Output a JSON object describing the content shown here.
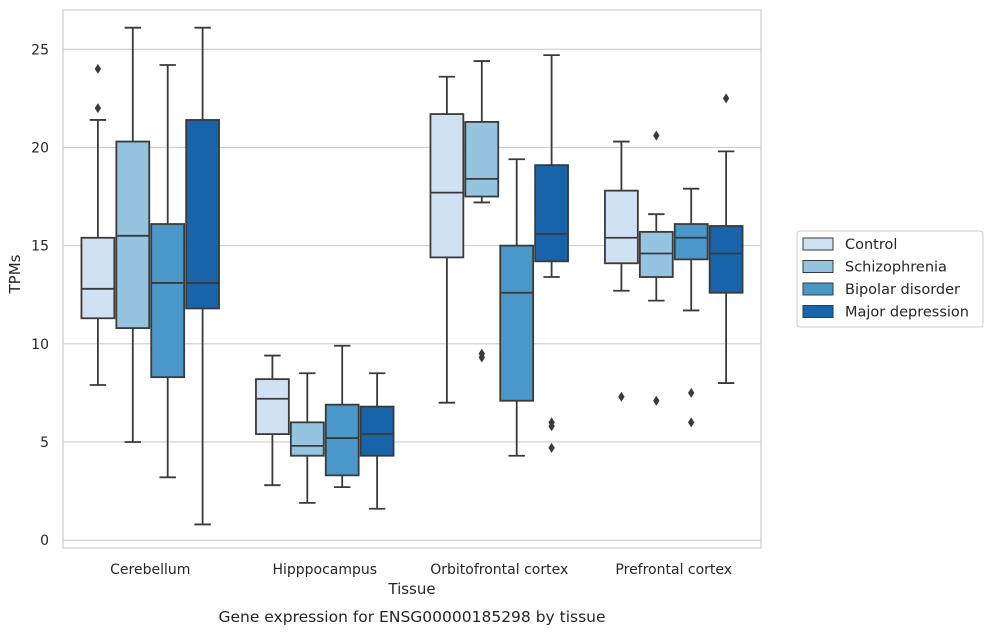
{
  "chart_data": {
    "type": "boxplot",
    "caption": "Gene expression for ENSG00000185298 by tissue",
    "xlabel": "Tissue",
    "ylabel": "TPMs",
    "ylim": [
      -0.4,
      27.0
    ],
    "yticks": [
      0,
      5,
      10,
      15,
      20,
      25
    ],
    "grid": "horizontal",
    "legend_position": "right",
    "categories": [
      "Cerebellum",
      "Hipppocampus",
      "Orbitofrontal cortex",
      "Prefrontal cortex"
    ],
    "series": [
      {
        "name": "Control",
        "color": "#d0e1f2",
        "boxes": [
          {
            "whislo": 7.9,
            "q1": 11.3,
            "med": 12.8,
            "q3": 15.4,
            "whishi": 21.4,
            "fliers": [
              22.0,
              24.0
            ]
          },
          {
            "whislo": 2.8,
            "q1": 5.4,
            "med": 7.2,
            "q3": 8.2,
            "whishi": 9.4,
            "fliers": []
          },
          {
            "whislo": 7.0,
            "q1": 14.4,
            "med": 17.7,
            "q3": 21.7,
            "whishi": 23.6,
            "fliers": []
          },
          {
            "whislo": 12.7,
            "q1": 14.1,
            "med": 15.4,
            "q3": 17.8,
            "whishi": 20.3,
            "fliers": [
              7.3
            ]
          }
        ]
      },
      {
        "name": "Schizophrenia",
        "color": "#94c4df",
        "boxes": [
          {
            "whislo": 5.0,
            "q1": 10.8,
            "med": 15.5,
            "q3": 20.3,
            "whishi": 26.1,
            "fliers": []
          },
          {
            "whislo": 1.9,
            "q1": 4.3,
            "med": 4.8,
            "q3": 6.0,
            "whishi": 8.5,
            "fliers": []
          },
          {
            "whislo": 17.2,
            "q1": 17.5,
            "med": 18.4,
            "q3": 21.3,
            "whishi": 24.4,
            "fliers": [
              9.3,
              9.5
            ]
          },
          {
            "whislo": 12.2,
            "q1": 13.4,
            "med": 14.6,
            "q3": 15.7,
            "whishi": 16.6,
            "fliers": [
              7.1,
              20.6
            ]
          }
        ]
      },
      {
        "name": "Bipolar disorder",
        "color": "#4a98c9",
        "boxes": [
          {
            "whislo": 3.2,
            "q1": 8.3,
            "med": 13.1,
            "q3": 16.1,
            "whishi": 24.2,
            "fliers": []
          },
          {
            "whislo": 2.7,
            "q1": 3.3,
            "med": 5.2,
            "q3": 6.9,
            "whishi": 9.9,
            "fliers": []
          },
          {
            "whislo": 4.3,
            "q1": 7.1,
            "med": 12.6,
            "q3": 15.0,
            "whishi": 19.4,
            "fliers": []
          },
          {
            "whislo": 11.7,
            "q1": 14.3,
            "med": 15.4,
            "q3": 16.1,
            "whishi": 17.9,
            "fliers": [
              6.0,
              7.5
            ]
          }
        ]
      },
      {
        "name": "Major depression",
        "color": "#1764ab",
        "boxes": [
          {
            "whislo": 0.8,
            "q1": 11.8,
            "med": 13.1,
            "q3": 21.4,
            "whishi": 26.1,
            "fliers": []
          },
          {
            "whislo": 1.6,
            "q1": 4.3,
            "med": 5.4,
            "q3": 6.8,
            "whishi": 8.5,
            "fliers": []
          },
          {
            "whislo": 13.4,
            "q1": 14.2,
            "med": 15.6,
            "q3": 19.1,
            "whishi": 24.7,
            "fliers": [
              4.7,
              5.8,
              6.0
            ]
          },
          {
            "whislo": 8.0,
            "q1": 12.6,
            "med": 14.6,
            "q3": 16.0,
            "whishi": 19.8,
            "fliers": [
              22.5
            ]
          }
        ]
      }
    ]
  }
}
